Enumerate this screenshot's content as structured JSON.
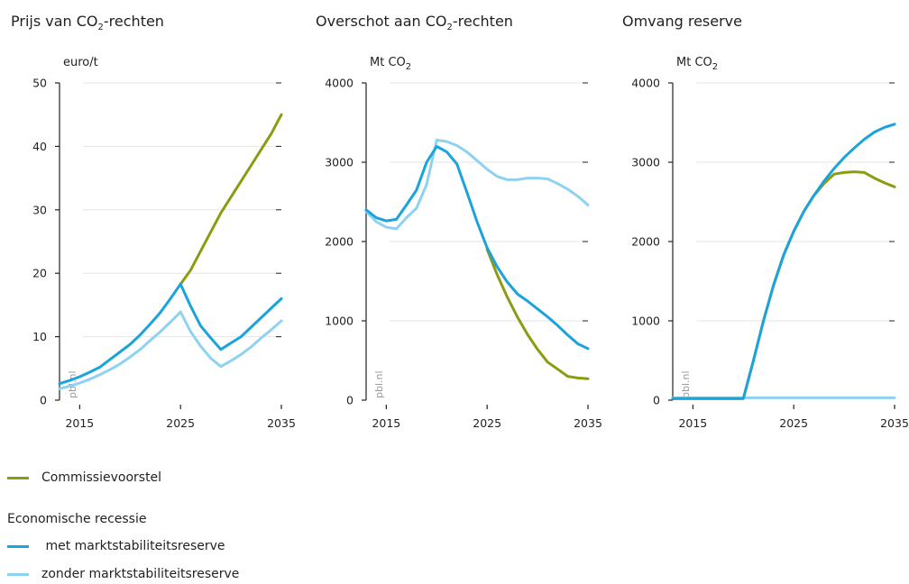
{
  "colors": {
    "commissie": "#8c9c10",
    "met": "#1aa3dc",
    "zonder": "#8ed2f2",
    "grid": "#e6e6e6",
    "axis": "#222222"
  },
  "watermark": "pbl.nl",
  "panels": [
    {
      "title_main": "Prijs van CO",
      "title_sub": "2",
      "title_rest": "-rechten",
      "unit_main": "euro/t",
      "unit_sub": ""
    },
    {
      "title_main": "Overschot aan CO",
      "title_sub": "2",
      "title_rest": "-rechten",
      "unit_main": "Mt CO",
      "unit_sub": "2"
    },
    {
      "title_main": "Omvang reserve",
      "title_sub": "",
      "title_rest": "",
      "unit_main": "Mt CO",
      "unit_sub": "2"
    }
  ],
  "legend": {
    "commissie": "Commissievoorstel",
    "heading": "Economische recessie",
    "met": " met marktstabiliteitsreserve",
    "zonder": "zonder marktstabiliteitsreserve"
  },
  "chart_data": [
    {
      "type": "line",
      "title": "Prijs van CO2-rechten",
      "ylabel": "euro/t",
      "xlim": [
        2013,
        2035
      ],
      "ylim": [
        0,
        50
      ],
      "xticks": [
        2015,
        2025,
        2035
      ],
      "yticks": [
        0,
        10,
        20,
        30,
        40,
        50
      ],
      "grid": true,
      "series": [
        {
          "name": "Commissievoorstel",
          "color_key": "commissie",
          "x": [
            2025,
            2026,
            2027,
            2028,
            2029,
            2030,
            2031,
            2032,
            2033,
            2034,
            2035
          ],
          "y": [
            18.3,
            20.5,
            23.5,
            26.5,
            29.5,
            32,
            34.5,
            37,
            39.5,
            42,
            45
          ]
        },
        {
          "name": "met marktstabiliteitsreserve",
          "color_key": "met",
          "x": [
            2013,
            2014,
            2015,
            2016,
            2017,
            2018,
            2019,
            2020,
            2021,
            2022,
            2023,
            2024,
            2025,
            2026,
            2027,
            2028,
            2029,
            2030,
            2031,
            2032,
            2033,
            2034,
            2035
          ],
          "y": [
            2.6,
            3.1,
            3.7,
            4.4,
            5.2,
            6.4,
            7.6,
            8.8,
            10.3,
            12.0,
            13.8,
            16.0,
            18.3,
            14.8,
            11.7,
            9.8,
            8.0,
            9.0,
            10.0,
            11.5,
            13.0,
            14.5,
            16.0
          ]
        },
        {
          "name": "zonder marktstabiliteitsreserve",
          "color_key": "zonder",
          "x": [
            2013,
            2014,
            2015,
            2016,
            2017,
            2018,
            2019,
            2020,
            2021,
            2022,
            2023,
            2024,
            2025,
            2026,
            2027,
            2028,
            2029,
            2030,
            2031,
            2032,
            2033,
            2034,
            2035
          ],
          "y": [
            1.8,
            2.2,
            2.7,
            3.3,
            4.0,
            4.8,
            5.7,
            6.8,
            8.0,
            9.4,
            10.8,
            12.3,
            13.9,
            10.8,
            8.5,
            6.6,
            5.3,
            6.2,
            7.2,
            8.4,
            9.8,
            11.1,
            12.5
          ]
        }
      ]
    },
    {
      "type": "line",
      "title": "Overschot aan CO2-rechten",
      "ylabel": "Mt CO2",
      "xlim": [
        2013,
        2035
      ],
      "ylim": [
        0,
        4000
      ],
      "xticks": [
        2015,
        2025,
        2035
      ],
      "yticks": [
        0,
        1000,
        2000,
        3000,
        4000
      ],
      "grid": true,
      "series": [
        {
          "name": "Commissievoorstel",
          "color_key": "commissie",
          "x": [
            2025,
            2026,
            2027,
            2028,
            2029,
            2030,
            2031,
            2032,
            2033,
            2034,
            2035
          ],
          "y": [
            1900,
            1580,
            1300,
            1050,
            830,
            640,
            480,
            390,
            300,
            280,
            270
          ]
        },
        {
          "name": "met marktstabiliteitsreserve",
          "color_key": "met",
          "x": [
            2013,
            2014,
            2015,
            2016,
            2017,
            2018,
            2019,
            2020,
            2021,
            2022,
            2023,
            2024,
            2025,
            2026,
            2027,
            2028,
            2029,
            2030,
            2031,
            2032,
            2033,
            2034,
            2035
          ],
          "y": [
            2400,
            2300,
            2260,
            2280,
            2460,
            2650,
            3000,
            3200,
            3130,
            2980,
            2620,
            2250,
            1920,
            1680,
            1490,
            1340,
            1250,
            1150,
            1050,
            940,
            820,
            710,
            650
          ]
        },
        {
          "name": "zonder marktstabiliteitsreserve",
          "color_key": "zonder",
          "x": [
            2013,
            2014,
            2015,
            2016,
            2017,
            2018,
            2019,
            2020,
            2021,
            2022,
            2023,
            2024,
            2025,
            2026,
            2027,
            2028,
            2029,
            2030,
            2031,
            2032,
            2033,
            2034,
            2035
          ],
          "y": [
            2380,
            2250,
            2180,
            2160,
            2300,
            2420,
            2720,
            3280,
            3260,
            3210,
            3130,
            3020,
            2910,
            2820,
            2780,
            2780,
            2800,
            2800,
            2790,
            2730,
            2660,
            2570,
            2460
          ]
        }
      ]
    },
    {
      "type": "line",
      "title": "Omvang reserve",
      "ylabel": "Mt CO2",
      "xlim": [
        2013,
        2035
      ],
      "ylim": [
        0,
        4000
      ],
      "xticks": [
        2015,
        2025,
        2035
      ],
      "yticks": [
        0,
        1000,
        2000,
        3000,
        4000
      ],
      "grid": true,
      "series": [
        {
          "name": "Commissievoorstel",
          "color_key": "commissie",
          "x": [
            2013,
            2020,
            2021,
            2022,
            2023,
            2024,
            2025,
            2026,
            2027,
            2028,
            2029,
            2030,
            2031,
            2032,
            2033,
            2034,
            2035
          ],
          "y": [
            20,
            20,
            500,
            1000,
            1450,
            1830,
            2130,
            2380,
            2580,
            2730,
            2850,
            2870,
            2880,
            2870,
            2800,
            2740,
            2690
          ]
        },
        {
          "name": "met marktstabiliteitsreserve",
          "color_key": "met",
          "x": [
            2013,
            2020,
            2021,
            2022,
            2023,
            2024,
            2025,
            2026,
            2027,
            2028,
            2029,
            2030,
            2031,
            2032,
            2033,
            2034,
            2035
          ],
          "y": [
            20,
            20,
            500,
            1000,
            1450,
            1830,
            2130,
            2380,
            2580,
            2760,
            2920,
            3060,
            3180,
            3290,
            3380,
            3440,
            3480
          ]
        },
        {
          "name": "zonder marktstabiliteitsreserve",
          "color_key": "zonder",
          "x": [
            2013,
            2035
          ],
          "y": [
            30,
            30
          ]
        }
      ]
    }
  ]
}
